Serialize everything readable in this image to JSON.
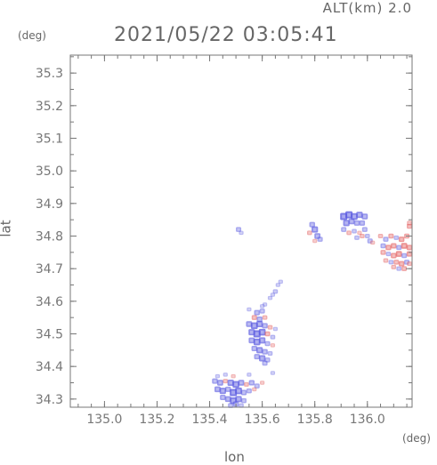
{
  "header": {
    "altitude": "ALT(km) 2.0",
    "timestamp": "2021/05/22 03:05:41"
  },
  "chart_data": {
    "type": "scatter",
    "title": "2021/05/22 03:05:41",
    "xlabel": "lon",
    "ylabel": "lat",
    "x_unit": "(deg)",
    "y_unit": "(deg)",
    "xlim": [
      134.87,
      136.17
    ],
    "ylim": [
      34.275,
      35.355
    ],
    "xticks": [
      "135.0",
      "135.2",
      "135.4",
      "135.6",
      "135.8",
      "136.0"
    ],
    "yticks": [
      "34.3",
      "34.4",
      "34.5",
      "34.6",
      "34.7",
      "34.8",
      "34.9",
      "35.0",
      "35.1",
      "35.2",
      "35.3"
    ],
    "grid": false,
    "colors": {
      "positive": "#e05050",
      "negative": "#5a5ae0",
      "axes": "#777777"
    },
    "series": [
      {
        "values": [
          [
            135.51,
            34.82,
            "b",
            0.5
          ],
          [
            135.52,
            34.81,
            "b",
            0.3
          ],
          [
            135.79,
            34.835,
            "b",
            0.6
          ],
          [
            135.8,
            34.82,
            "b",
            0.8
          ],
          [
            135.81,
            34.8,
            "b",
            0.7
          ],
          [
            135.78,
            34.81,
            "r",
            0.4
          ],
          [
            135.82,
            34.79,
            "b",
            0.5
          ],
          [
            135.8,
            34.785,
            "r",
            0.3
          ],
          [
            135.91,
            34.86,
            "b",
            1.0
          ],
          [
            135.93,
            34.865,
            "b",
            1.0
          ],
          [
            135.95,
            34.86,
            "b",
            0.9
          ],
          [
            135.97,
            34.865,
            "b",
            0.8
          ],
          [
            135.99,
            34.86,
            "b",
            0.7
          ],
          [
            135.92,
            34.84,
            "b",
            0.8
          ],
          [
            135.94,
            34.845,
            "b",
            0.7
          ],
          [
            135.96,
            34.84,
            "b",
            0.6
          ],
          [
            135.98,
            34.84,
            "b",
            0.6
          ],
          [
            135.91,
            34.82,
            "b",
            0.5
          ],
          [
            135.93,
            34.81,
            "r",
            0.4
          ],
          [
            135.95,
            34.815,
            "b",
            0.4
          ],
          [
            135.97,
            34.81,
            "r",
            0.3
          ],
          [
            135.99,
            34.82,
            "b",
            0.5
          ],
          [
            135.96,
            34.795,
            "b",
            0.4
          ],
          [
            135.98,
            34.8,
            "r",
            0.4
          ],
          [
            136.0,
            34.8,
            "b",
            0.4
          ],
          [
            136.01,
            34.785,
            "b",
            0.5
          ],
          [
            136.02,
            34.78,
            "r",
            0.3
          ],
          [
            136.05,
            34.8,
            "r",
            0.4
          ],
          [
            136.07,
            34.79,
            "b",
            0.5
          ],
          [
            136.09,
            34.8,
            "r",
            0.5
          ],
          [
            136.11,
            34.795,
            "b",
            0.4
          ],
          [
            136.13,
            34.79,
            "r",
            0.6
          ],
          [
            136.15,
            34.8,
            "r",
            0.5
          ],
          [
            136.16,
            34.83,
            "r",
            0.5
          ],
          [
            136.16,
            34.84,
            "r",
            0.4
          ],
          [
            136.06,
            34.77,
            "b",
            0.5
          ],
          [
            136.08,
            34.765,
            "r",
            0.6
          ],
          [
            136.1,
            34.77,
            "r",
            0.6
          ],
          [
            136.12,
            34.765,
            "b",
            0.5
          ],
          [
            136.14,
            34.77,
            "r",
            0.7
          ],
          [
            136.16,
            34.765,
            "r",
            0.6
          ],
          [
            136.06,
            34.75,
            "r",
            0.5
          ],
          [
            136.08,
            34.745,
            "b",
            0.4
          ],
          [
            136.1,
            34.74,
            "r",
            0.6
          ],
          [
            136.12,
            34.745,
            "r",
            0.7
          ],
          [
            136.14,
            34.74,
            "b",
            0.5
          ],
          [
            136.16,
            34.745,
            "r",
            0.6
          ],
          [
            136.07,
            34.725,
            "r",
            0.4
          ],
          [
            136.09,
            34.72,
            "b",
            0.4
          ],
          [
            136.11,
            34.72,
            "r",
            0.5
          ],
          [
            136.13,
            34.715,
            "r",
            0.6
          ],
          [
            136.15,
            34.72,
            "b",
            0.5
          ],
          [
            136.16,
            34.715,
            "r",
            0.4
          ],
          [
            136.1,
            34.705,
            "r",
            0.4
          ],
          [
            136.12,
            34.7,
            "b",
            0.4
          ],
          [
            136.14,
            34.7,
            "r",
            0.5
          ],
          [
            135.67,
            34.66,
            "b",
            0.3
          ],
          [
            135.66,
            34.65,
            "b",
            0.3
          ],
          [
            135.65,
            34.63,
            "b",
            0.4
          ],
          [
            135.64,
            34.62,
            "b",
            0.3
          ],
          [
            135.63,
            34.61,
            "b",
            0.3
          ],
          [
            135.61,
            34.59,
            "b",
            0.3
          ],
          [
            135.6,
            34.585,
            "b",
            0.3
          ],
          [
            135.55,
            34.575,
            "b",
            0.3
          ],
          [
            135.58,
            34.565,
            "b",
            0.6
          ],
          [
            135.6,
            34.57,
            "b",
            0.5
          ],
          [
            135.57,
            34.55,
            "r",
            0.5
          ],
          [
            135.59,
            34.545,
            "b",
            0.6
          ],
          [
            135.61,
            34.55,
            "r",
            0.4
          ],
          [
            135.55,
            34.53,
            "b",
            0.7
          ],
          [
            135.57,
            34.525,
            "b",
            0.9
          ],
          [
            135.59,
            34.53,
            "b",
            0.8
          ],
          [
            135.61,
            34.525,
            "b",
            0.6
          ],
          [
            135.63,
            34.52,
            "r",
            0.4
          ],
          [
            135.65,
            34.515,
            "b",
            0.3
          ],
          [
            135.56,
            34.505,
            "b",
            0.8
          ],
          [
            135.58,
            34.5,
            "b",
            1.0
          ],
          [
            135.6,
            34.505,
            "b",
            0.9
          ],
          [
            135.62,
            34.5,
            "r",
            0.5
          ],
          [
            135.64,
            34.49,
            "b",
            0.4
          ],
          [
            135.56,
            34.48,
            "b",
            0.7
          ],
          [
            135.58,
            34.475,
            "b",
            0.9
          ],
          [
            135.6,
            34.48,
            "b",
            0.8
          ],
          [
            135.62,
            34.47,
            "b",
            0.5
          ],
          [
            135.64,
            34.465,
            "r",
            0.3
          ],
          [
            135.57,
            34.455,
            "b",
            0.6
          ],
          [
            135.59,
            34.45,
            "b",
            0.8
          ],
          [
            135.61,
            34.445,
            "b",
            0.6
          ],
          [
            135.63,
            34.44,
            "b",
            0.4
          ],
          [
            135.58,
            34.43,
            "b",
            0.6
          ],
          [
            135.6,
            34.425,
            "b",
            0.8
          ],
          [
            135.62,
            34.42,
            "b",
            0.5
          ],
          [
            135.61,
            34.41,
            "b",
            0.5
          ],
          [
            135.64,
            34.38,
            "b",
            0.3
          ],
          [
            135.43,
            34.37,
            "b",
            0.3
          ],
          [
            135.46,
            34.375,
            "b",
            0.3
          ],
          [
            135.49,
            34.37,
            "r",
            0.3
          ],
          [
            135.55,
            34.375,
            "b",
            0.3
          ],
          [
            135.42,
            34.355,
            "b",
            0.6
          ],
          [
            135.44,
            34.35,
            "b",
            0.7
          ],
          [
            135.46,
            34.355,
            "r",
            0.4
          ],
          [
            135.48,
            34.35,
            "b",
            0.8
          ],
          [
            135.5,
            34.345,
            "b",
            0.9
          ],
          [
            135.52,
            34.35,
            "b",
            0.7
          ],
          [
            135.54,
            34.345,
            "r",
            0.4
          ],
          [
            135.56,
            34.35,
            "b",
            0.6
          ],
          [
            135.58,
            34.34,
            "b",
            0.5
          ],
          [
            135.6,
            34.35,
            "r",
            0.3
          ],
          [
            135.43,
            34.33,
            "b",
            0.7
          ],
          [
            135.45,
            34.325,
            "b",
            0.8
          ],
          [
            135.47,
            34.33,
            "b",
            0.6
          ],
          [
            135.49,
            34.32,
            "b",
            1.0
          ],
          [
            135.51,
            34.325,
            "b",
            0.9
          ],
          [
            135.53,
            34.32,
            "b",
            0.6
          ],
          [
            135.55,
            34.325,
            "b",
            0.5
          ],
          [
            135.57,
            34.33,
            "r",
            0.3
          ],
          [
            135.45,
            34.305,
            "b",
            0.6
          ],
          [
            135.47,
            34.3,
            "b",
            0.7
          ],
          [
            135.49,
            34.295,
            "b",
            0.9
          ],
          [
            135.51,
            34.3,
            "b",
            0.8
          ],
          [
            135.53,
            34.295,
            "b",
            0.5
          ],
          [
            135.5,
            34.285,
            "b",
            0.6
          ],
          [
            135.48,
            34.28,
            "b",
            0.5
          ],
          [
            135.52,
            34.28,
            "b",
            0.4
          ]
        ]
      }
    ]
  }
}
